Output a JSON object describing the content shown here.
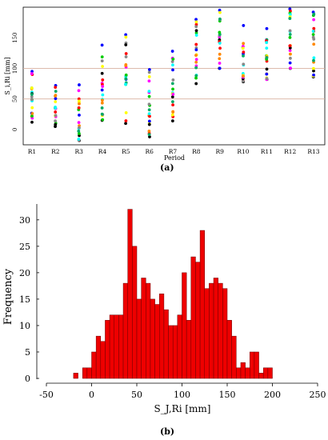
{
  "panel_a_label": "(a)",
  "panel_b_label": "(b)",
  "chart_data": [
    {
      "type": "scatter",
      "xlabel": "Period",
      "ylabel": "S_i,Ri [mm]",
      "categories": [
        "R1",
        "R2",
        "R3",
        "R4",
        "R5",
        "R6",
        "R7",
        "R8",
        "R9",
        "R10",
        "R11",
        "R12",
        "R13"
      ],
      "yticks": [
        0,
        50,
        100,
        150
      ],
      "ylim": [
        -25,
        200
      ],
      "reference_lines": [
        50,
        100
      ],
      "reference_line_color": "#d8b0a0",
      "point_colors": [
        "#000000",
        "#0000ff",
        "#ff0000",
        "#00cc00",
        "#ff00ff",
        "#00ffff",
        "#ffff00",
        "#ff8800",
        "#888888",
        "#00aa66"
      ],
      "ranges": [
        {
          "category": "R1",
          "min": 12,
          "max": 95
        },
        {
          "category": "R2",
          "min": 5,
          "max": 72
        },
        {
          "category": "R3",
          "min": -18,
          "max": 73
        },
        {
          "category": "R4",
          "min": 15,
          "max": 138
        },
        {
          "category": "R5",
          "min": 10,
          "max": 155
        },
        {
          "category": "R6",
          "min": -12,
          "max": 98
        },
        {
          "category": "R7",
          "min": 14,
          "max": 128
        },
        {
          "category": "R8",
          "min": 75,
          "max": 180
        },
        {
          "category": "R9",
          "min": 100,
          "max": 195
        },
        {
          "category": "R10",
          "min": 78,
          "max": 170
        },
        {
          "category": "R11",
          "min": 82,
          "max": 165
        },
        {
          "category": "R12",
          "min": 100,
          "max": 197
        },
        {
          "category": "R13",
          "min": 86,
          "max": 192
        }
      ]
    },
    {
      "type": "bar",
      "subtype": "histogram",
      "xlabel": "S_J,Ri [mm]",
      "ylabel": "Frequency",
      "xlim": [
        -50,
        250
      ],
      "ylim": [
        0,
        33
      ],
      "xticks": [
        -50,
        0,
        50,
        100,
        150,
        200,
        250
      ],
      "yticks": [
        0,
        5,
        10,
        15,
        20,
        25,
        30
      ],
      "bin_width": 5,
      "bar_color": "#ee0000",
      "bins": [
        {
          "x": -20,
          "value": 1
        },
        {
          "x": -15,
          "value": 0
        },
        {
          "x": -10,
          "value": 2
        },
        {
          "x": -5,
          "value": 2
        },
        {
          "x": 0,
          "value": 5
        },
        {
          "x": 5,
          "value": 8
        },
        {
          "x": 10,
          "value": 7
        },
        {
          "x": 15,
          "value": 11
        },
        {
          "x": 20,
          "value": 12
        },
        {
          "x": 25,
          "value": 12
        },
        {
          "x": 30,
          "value": 12
        },
        {
          "x": 35,
          "value": 18
        },
        {
          "x": 40,
          "value": 32
        },
        {
          "x": 45,
          "value": 25
        },
        {
          "x": 50,
          "value": 15
        },
        {
          "x": 55,
          "value": 19
        },
        {
          "x": 60,
          "value": 18
        },
        {
          "x": 65,
          "value": 15
        },
        {
          "x": 70,
          "value": 14
        },
        {
          "x": 75,
          "value": 16
        },
        {
          "x": 80,
          "value": 13
        },
        {
          "x": 85,
          "value": 10
        },
        {
          "x": 90,
          "value": 10
        },
        {
          "x": 95,
          "value": 12
        },
        {
          "x": 100,
          "value": 20
        },
        {
          "x": 105,
          "value": 11
        },
        {
          "x": 110,
          "value": 23
        },
        {
          "x": 115,
          "value": 22
        },
        {
          "x": 120,
          "value": 28
        },
        {
          "x": 125,
          "value": 17
        },
        {
          "x": 130,
          "value": 18
        },
        {
          "x": 135,
          "value": 19
        },
        {
          "x": 140,
          "value": 18
        },
        {
          "x": 145,
          "value": 17
        },
        {
          "x": 150,
          "value": 11
        },
        {
          "x": 155,
          "value": 8
        },
        {
          "x": 160,
          "value": 2
        },
        {
          "x": 165,
          "value": 3
        },
        {
          "x": 170,
          "value": 2
        },
        {
          "x": 175,
          "value": 5
        },
        {
          "x": 180,
          "value": 5
        },
        {
          "x": 185,
          "value": 1
        },
        {
          "x": 190,
          "value": 2
        },
        {
          "x": 195,
          "value": 2
        }
      ]
    }
  ]
}
